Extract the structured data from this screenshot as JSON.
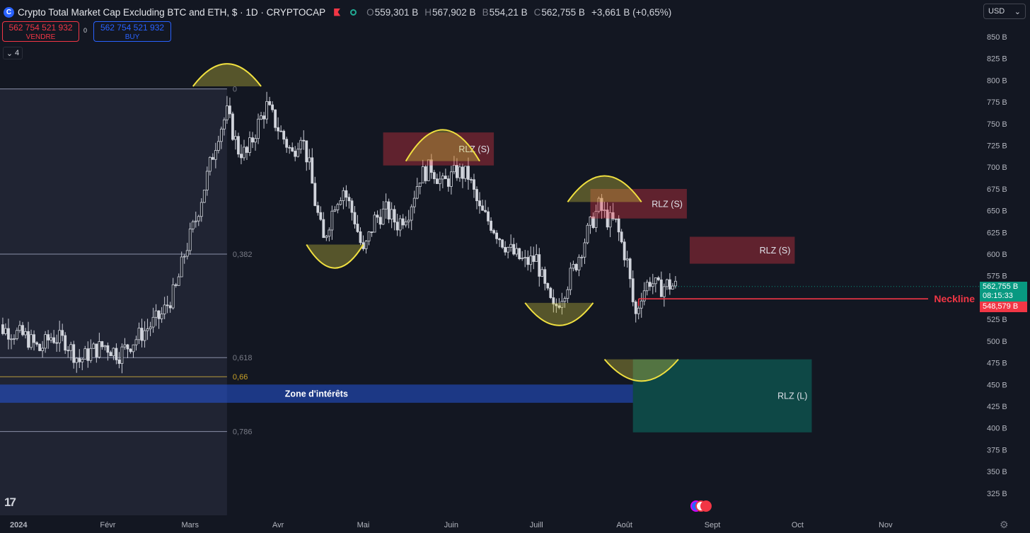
{
  "header": {
    "logo_text": "C",
    "title": "Crypto Total Market Cap Excluding BTC and ETH, $ · 1D · CRYPTOCAP",
    "open_label": "O",
    "open": "559,301 B",
    "high_label": "H",
    "high": "567,902 B",
    "low_label": "B",
    "low": "554,21 B",
    "close_label": "C",
    "close": "562,755 B",
    "change": "+3,661 B (+0,65%)"
  },
  "trade": {
    "sell_price": "562 754 521 932",
    "sell_label": "VENDRE",
    "spread": "0",
    "buy_price": "562 754 521 932",
    "buy_label": "BUY"
  },
  "indicators_count": "4",
  "currency": "USD",
  "current_price": {
    "value": "562,755 B",
    "countdown": "08:15:33"
  },
  "neckline_price": "548,579 B",
  "colors": {
    "bg": "#131722",
    "up": "#22ab94",
    "down": "#f23645",
    "accent": "#2962ff"
  },
  "chart_data": {
    "type": "candlestick",
    "title": "Crypto Total Market Cap Excluding BTC and ETH, $ · 1D · CRYPTOCAP",
    "y_unit": "B",
    "ylim": [
      312,
      870
    ],
    "y_ticks": [
      325,
      350,
      375,
      400,
      425,
      450,
      475,
      500,
      525,
      550,
      575,
      600,
      625,
      650,
      675,
      700,
      725,
      750,
      775,
      800,
      825,
      850
    ],
    "y_tick_labels": [
      "325 B",
      "350 B",
      "375 B",
      "400 B",
      "425 B",
      "450 B",
      "475 B",
      "500 B",
      "525 B",
      "550 B",
      "575 B",
      "600 B",
      "625 B",
      "650 B",
      "675 B",
      "700 B",
      "725 B",
      "750 B",
      "775 B",
      "800 B",
      "825 B",
      "850 B"
    ],
    "x_labels": [
      {
        "date": "2024-01-01",
        "label": "2024"
      },
      {
        "date": "2024-02-01",
        "label": "Févr"
      },
      {
        "date": "2024-03-01",
        "label": "Mars"
      },
      {
        "date": "2024-04-01",
        "label": "Avr"
      },
      {
        "date": "2024-05-01",
        "label": "Mai"
      },
      {
        "date": "2024-06-01",
        "label": "Juin"
      },
      {
        "date": "2024-07-01",
        "label": "Juill"
      },
      {
        "date": "2024-08-01",
        "label": "Août"
      },
      {
        "date": "2024-09-01",
        "label": "Sept"
      },
      {
        "date": "2024-10-01",
        "label": "Oct"
      },
      {
        "date": "2024-11-01",
        "label": "Nov"
      }
    ],
    "close_path": [
      [
        "2023-12-21",
        520
      ],
      [
        "2023-12-28",
        512
      ],
      [
        "2024-01-03",
        505
      ],
      [
        "2024-01-08",
        490
      ],
      [
        "2024-01-12",
        505
      ],
      [
        "2024-01-17",
        500
      ],
      [
        "2024-01-22",
        477
      ],
      [
        "2024-01-26",
        488
      ],
      [
        "2024-01-31",
        495
      ],
      [
        "2024-02-05",
        485
      ],
      [
        "2024-02-10",
        500
      ],
      [
        "2024-02-15",
        515
      ],
      [
        "2024-02-20",
        530
      ],
      [
        "2024-02-25",
        560
      ],
      [
        "2024-02-28",
        600
      ],
      [
        "2024-03-03",
        640
      ],
      [
        "2024-03-07",
        690
      ],
      [
        "2024-03-11",
        740
      ],
      [
        "2024-03-14",
        762
      ],
      [
        "2024-03-18",
        720
      ],
      [
        "2024-03-21",
        715
      ],
      [
        "2024-03-25",
        750
      ],
      [
        "2024-03-28",
        770
      ],
      [
        "2024-04-01",
        745
      ],
      [
        "2024-04-06",
        715
      ],
      [
        "2024-04-09",
        740
      ],
      [
        "2024-04-12",
        700
      ],
      [
        "2024-04-14",
        660
      ],
      [
        "2024-04-17",
        615
      ],
      [
        "2024-04-21",
        660
      ],
      [
        "2024-04-24",
        675
      ],
      [
        "2024-04-28",
        640
      ],
      [
        "2024-05-01",
        600
      ],
      [
        "2024-05-05",
        640
      ],
      [
        "2024-05-09",
        650
      ],
      [
        "2024-05-13",
        635
      ],
      [
        "2024-05-17",
        650
      ],
      [
        "2024-05-21",
        690
      ],
      [
        "2024-05-25",
        700
      ],
      [
        "2024-05-29",
        680
      ],
      [
        "2024-06-03",
        695
      ],
      [
        "2024-06-07",
        690
      ],
      [
        "2024-06-11",
        650
      ],
      [
        "2024-06-15",
        635
      ],
      [
        "2024-06-19",
        615
      ],
      [
        "2024-06-23",
        600
      ],
      [
        "2024-06-27",
        590
      ],
      [
        "2024-07-01",
        595
      ],
      [
        "2024-07-04",
        560
      ],
      [
        "2024-07-07",
        535
      ],
      [
        "2024-07-11",
        560
      ],
      [
        "2024-07-15",
        590
      ],
      [
        "2024-07-19",
        625
      ],
      [
        "2024-07-23",
        655
      ],
      [
        "2024-07-26",
        640
      ],
      [
        "2024-07-29",
        635
      ],
      [
        "2024-08-02",
        590
      ],
      [
        "2024-08-04",
        545
      ],
      [
        "2024-08-05",
        530
      ],
      [
        "2024-08-07",
        555
      ],
      [
        "2024-08-10",
        570
      ],
      [
        "2024-08-13",
        560
      ],
      [
        "2024-08-16",
        565
      ],
      [
        "2024-08-19",
        563
      ]
    ],
    "fibonacci": {
      "levels": [
        {
          "ratio": 0,
          "label": "0",
          "value": 790
        },
        {
          "ratio": 0.382,
          "label": "0,382",
          "value": 600
        },
        {
          "ratio": 0.618,
          "label": "0,618",
          "value": 481
        },
        {
          "ratio": 0.66,
          "label": "0,66",
          "value": 459
        },
        {
          "ratio": 0.786,
          "label": "0,786",
          "value": 396
        }
      ],
      "start": "2023-12-20",
      "end": "2024-03-14"
    },
    "zones": [
      {
        "label": "RLZ (S)",
        "type": "resistance",
        "x0": "2024-05-08",
        "x1": "2024-06-16",
        "y0": 702,
        "y1": 740
      },
      {
        "label": "RLZ (S)",
        "type": "resistance",
        "x0": "2024-07-20",
        "x1": "2024-08-23",
        "y0": 641,
        "y1": 675
      },
      {
        "label": "RLZ (S)",
        "type": "resistance",
        "x0": "2024-08-24",
        "x1": "2024-09-30",
        "y0": 589,
        "y1": 620
      },
      {
        "label": "RLZ (L)",
        "type": "demand",
        "x0": "2024-08-04",
        "x1": "2024-10-06",
        "y0": 395,
        "y1": 479
      },
      {
        "label": "Zone d'intérêts",
        "type": "interest",
        "x0": "2023-12-20",
        "x1": "2024-08-04",
        "y0": 429,
        "y1": 450
      }
    ],
    "arcs": [
      {
        "type": "top",
        "center": "2024-03-14",
        "half_width_days": 12,
        "base": 793,
        "peak": 819
      },
      {
        "type": "bottom",
        "center": "2024-04-21",
        "half_width_days": 10,
        "base": 611,
        "peak": 584
      },
      {
        "type": "top",
        "center": "2024-05-29",
        "half_width_days": 13,
        "base": 707,
        "peak": 743
      },
      {
        "type": "bottom",
        "center": "2024-07-09",
        "half_width_days": 12,
        "base": 544,
        "peak": 518
      },
      {
        "type": "top",
        "center": "2024-07-25",
        "half_width_days": 13,
        "base": 660,
        "peak": 690
      },
      {
        "type": "bottom",
        "center": "2024-08-07",
        "half_width_days": 13,
        "base": 479,
        "peak": 454
      }
    ],
    "neckline": {
      "label": "Neckline",
      "value": 548.6,
      "from": "2024-08-06"
    }
  }
}
